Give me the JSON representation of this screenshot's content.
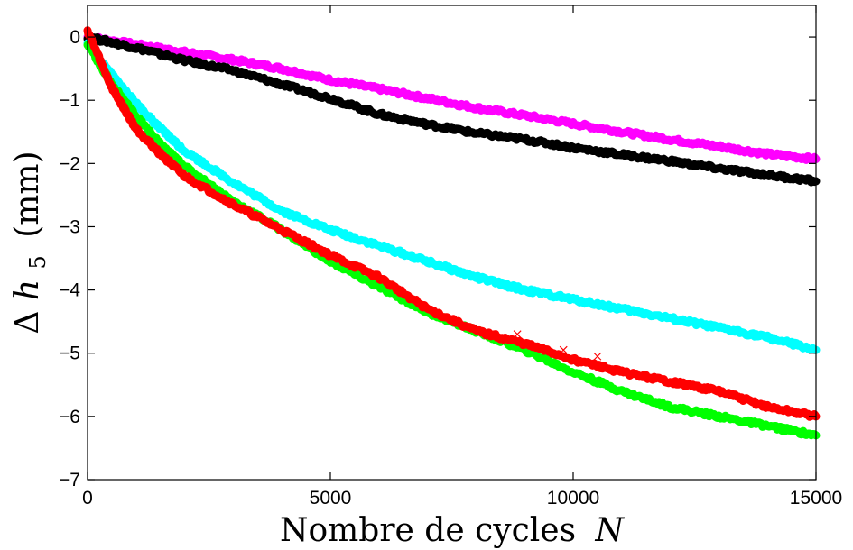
{
  "chart_data": {
    "type": "line",
    "title": "",
    "xlabel": "Nombre de cycles",
    "xlabel_var": "N",
    "ylabel_prefix": "Δ",
    "ylabel_var": "h",
    "ylabel_sub": "5",
    "ylabel_unit": "(mm)",
    "xlim": [
      0,
      15000
    ],
    "ylim": [
      -7,
      0.5
    ],
    "xticks": [
      0,
      5000,
      10000,
      15000
    ],
    "xtick_labels": [
      "0",
      "5000",
      "10000",
      "15000"
    ],
    "yticks": [
      0,
      -1,
      -2,
      -3,
      -4,
      -5,
      -6,
      -7
    ],
    "ytick_labels": [
      "0",
      "−1",
      "−2",
      "−3",
      "−4",
      "−5",
      "−6",
      "−7"
    ],
    "grid": false,
    "legend": "none",
    "series": [
      {
        "color": "#ff00ff",
        "x": [
          0,
          1000,
          2000,
          3000,
          4000,
          5000,
          6000,
          7000,
          8000,
          9000,
          10000,
          11000,
          12000,
          13000,
          14000,
          15000
        ],
        "y": [
          0,
          -0.12,
          -0.24,
          -0.36,
          -0.5,
          -0.68,
          -0.82,
          -0.97,
          -1.12,
          -1.24,
          -1.37,
          -1.5,
          -1.62,
          -1.73,
          -1.85,
          -1.93
        ]
      },
      {
        "color": "#000000",
        "x": [
          0,
          1000,
          2000,
          3000,
          4000,
          5000,
          6000,
          7000,
          8000,
          9000,
          10000,
          11000,
          12000,
          13000,
          14000,
          15000
        ],
        "y": [
          0,
          -0.17,
          -0.37,
          -0.53,
          -0.75,
          -0.97,
          -1.22,
          -1.38,
          -1.52,
          -1.62,
          -1.75,
          -1.86,
          -1.96,
          -2.08,
          -2.18,
          -2.28
        ]
      },
      {
        "color": "#00ffff",
        "x": [
          0,
          500,
          1000,
          1500,
          2000,
          3000,
          4000,
          5000,
          6000,
          7000,
          8000,
          9000,
          10000,
          11000,
          12000,
          13000,
          14000,
          15000
        ],
        "y": [
          -0.1,
          -0.6,
          -1.05,
          -1.45,
          -1.8,
          -2.3,
          -2.75,
          -3.05,
          -3.3,
          -3.55,
          -3.8,
          -4.0,
          -4.15,
          -4.3,
          -4.45,
          -4.6,
          -4.75,
          -4.95
        ]
      },
      {
        "color": "#00ff00",
        "x": [
          0,
          500,
          1000,
          1500,
          2000,
          3000,
          4000,
          5000,
          6000,
          7000,
          8000,
          9000,
          10000,
          11000,
          12000,
          13000,
          14000,
          15000
        ],
        "y": [
          -0.1,
          -0.75,
          -1.25,
          -1.7,
          -2.05,
          -2.6,
          -3.05,
          -3.55,
          -3.95,
          -4.35,
          -4.65,
          -4.95,
          -5.3,
          -5.6,
          -5.85,
          -6.0,
          -6.15,
          -6.3
        ]
      },
      {
        "color": "#ff0000",
        "x": [
          0,
          500,
          1000,
          1500,
          2000,
          3000,
          4000,
          5000,
          6000,
          7000,
          8000,
          9000,
          10000,
          11000,
          12000,
          13000,
          14000,
          15000
        ],
        "y": [
          0.1,
          -0.8,
          -1.45,
          -1.85,
          -2.2,
          -2.65,
          -3.05,
          -3.45,
          -3.8,
          -4.3,
          -4.65,
          -4.85,
          -5.1,
          -5.3,
          -5.45,
          -5.6,
          -5.85,
          -6.0
        ]
      }
    ],
    "outlier_markers": {
      "color": "#ff0000",
      "x": [
        8850,
        9800,
        10500
      ],
      "y": [
        -4.7,
        -4.95,
        -5.05
      ]
    }
  }
}
